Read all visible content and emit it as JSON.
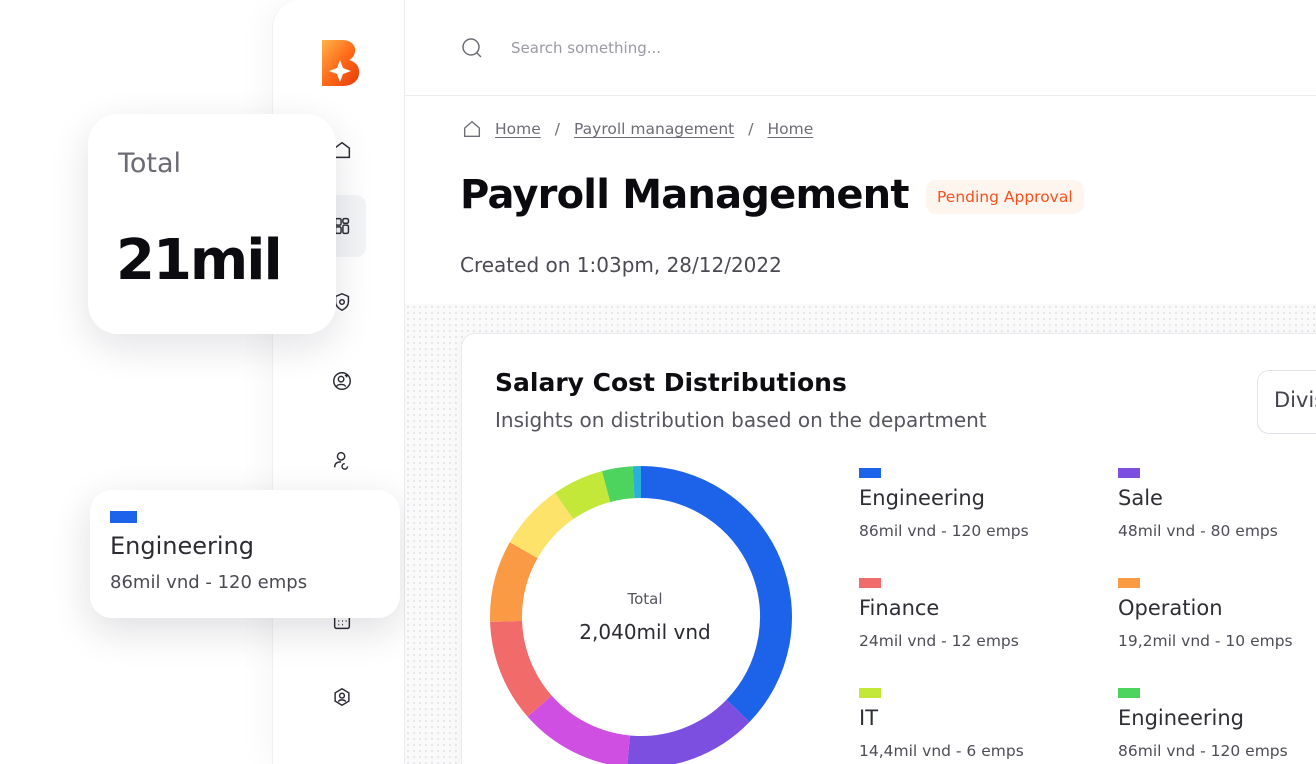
{
  "search": {
    "placeholder": "Search something..."
  },
  "breadcrumb": [
    "Home",
    "Payroll management",
    "Home"
  ],
  "page": {
    "title": "Payroll Management",
    "status": "Pending Approval",
    "created": "Created on 1:03pm, 28/12/2022"
  },
  "total_card": {
    "label": "Total",
    "value": "21mil"
  },
  "highlight_card": {
    "name": "Engineering",
    "detail": "86mil vnd - 120 emps",
    "color": "#1d63e9"
  },
  "chart_card": {
    "title": "Salary Cost Distributions",
    "subtitle": "Insights on distribution based on the department",
    "select_value": "Divis",
    "center_label": "Total",
    "center_value": "2,040mil vnd"
  },
  "legend": [
    {
      "name": "Engineering",
      "detail": "86mil vnd - 120 emps",
      "color": "#1d63e9"
    },
    {
      "name": "Sale",
      "detail": "48mil vnd - 80 emps",
      "color": "#7d4fe0"
    },
    {
      "name": "Finance",
      "detail": "24mil vnd - 12 emps",
      "color": "#f26b6b"
    },
    {
      "name": "Operation",
      "detail": "19,2mil vnd - 10 emps",
      "color": "#fb9a45"
    },
    {
      "name": "IT",
      "detail": "14,4mil vnd - 6 emps",
      "color": "#c3e83a"
    },
    {
      "name": "Engineering",
      "detail": "86mil vnd - 120 emps",
      "color": "#4cd45e"
    }
  ],
  "chart_data": {
    "type": "pie",
    "unit": "percent of total",
    "slices": [
      {
        "color": "#1d63e9",
        "value": 34
      },
      {
        "color": "#7d4fe0",
        "value": 13
      },
      {
        "color": "#cf4fe3",
        "value": 11
      },
      {
        "color": "#f26b6b",
        "value": 10
      },
      {
        "color": "#fb9a45",
        "value": 8
      },
      {
        "color": "#fde36a",
        "value": 6.5
      },
      {
        "color": "#c3e83a",
        "value": 5
      },
      {
        "color": "#4cd45e",
        "value": 3
      },
      {
        "color": "#2ab0d9",
        "value": 0.8
      }
    ],
    "visible_fraction": 0.5
  },
  "icons": {
    "sidebar": [
      "home-icon",
      "dashboard-icon",
      "shield-badge-icon",
      "user-add-icon",
      "user-switch-icon",
      "calendar-icon",
      "user-shield-icon"
    ]
  }
}
